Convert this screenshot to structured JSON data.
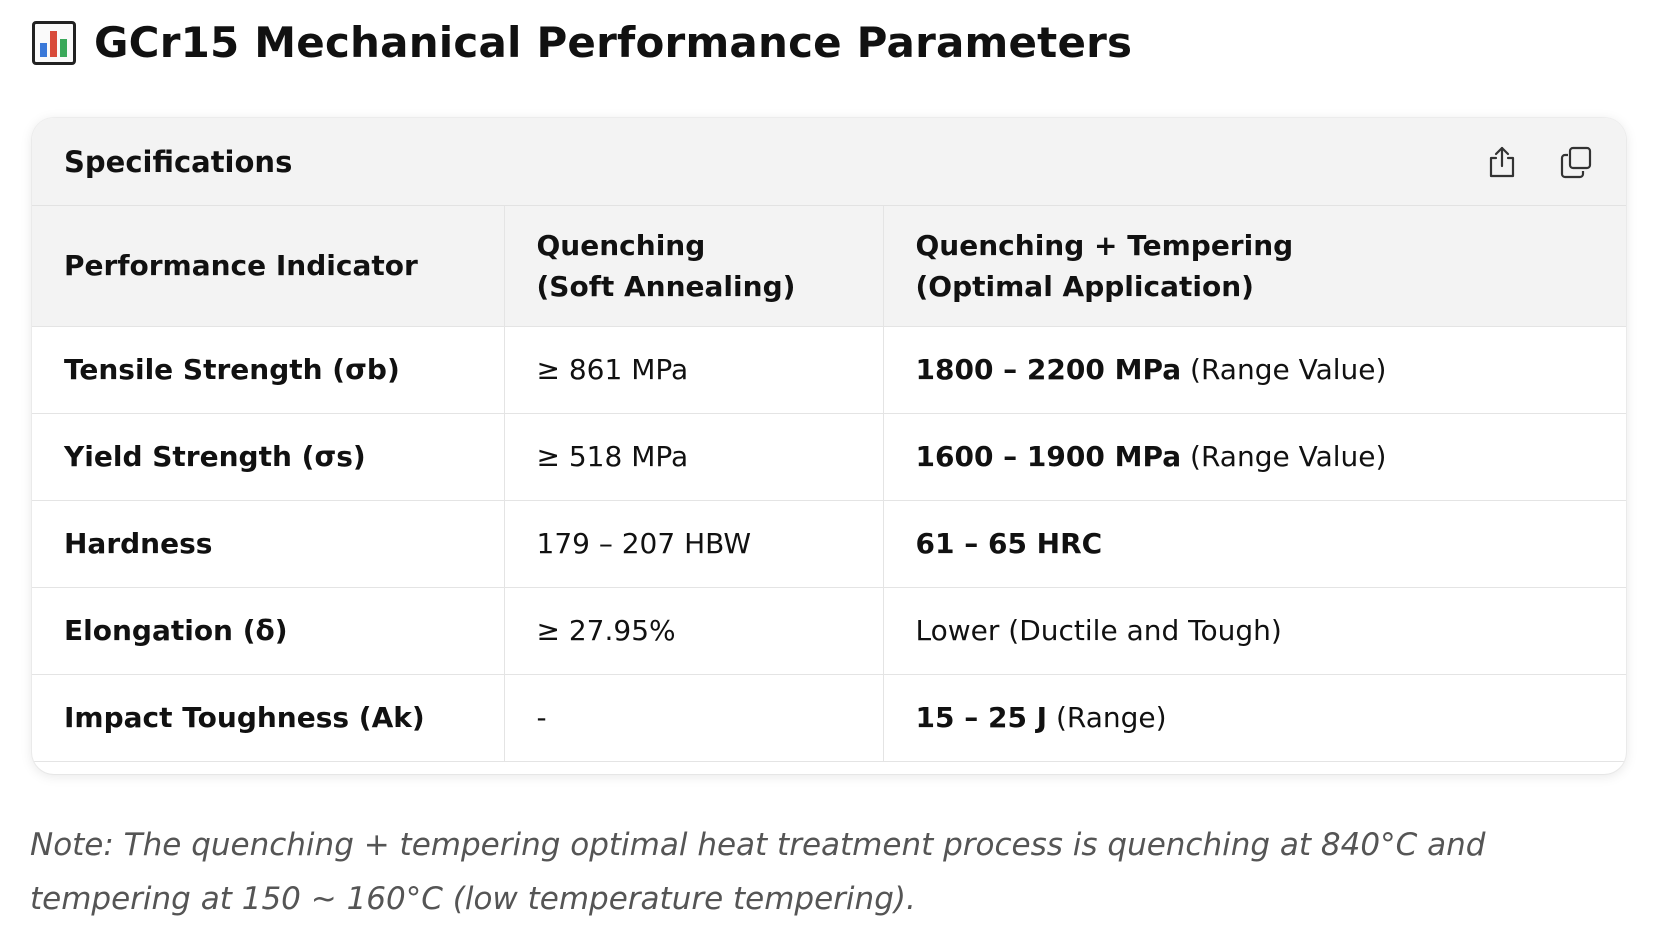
{
  "page": {
    "title": "GCr15 Mechanical Performance Parameters",
    "title_icon": "bar-chart-emoji"
  },
  "card": {
    "title": "Specifications",
    "icons": [
      "share-icon",
      "copy-icon"
    ]
  },
  "table": {
    "headers": [
      {
        "line1": "Performance Indicator",
        "line2": ""
      },
      {
        "line1": "Quenching",
        "line2": "(Soft Annealing)"
      },
      {
        "line1": "Quenching + Tempering",
        "line2": "(Optimal Application)"
      }
    ],
    "rows": [
      {
        "indicator": "Tensile Strength (σb)",
        "annealed": "≥ 861 MPa",
        "tempered_strong": "1800 – 2200 MPa",
        "tempered_note": " (Range Value)"
      },
      {
        "indicator": "Yield Strength (σs)",
        "annealed": "≥ 518 MPa",
        "tempered_strong": "1600 – 1900 MPa",
        "tempered_note": " (Range Value)"
      },
      {
        "indicator": "Hardness",
        "annealed": "179 – 207 HBW",
        "tempered_strong": "61 – 65 HRC",
        "tempered_note": ""
      },
      {
        "indicator": "Elongation (δ)",
        "annealed": "≥ 27.95%",
        "tempered_strong": "",
        "tempered_note": "Lower (Ductile and Tough)"
      },
      {
        "indicator": "Impact Toughness (Ak)",
        "annealed": "-",
        "tempered_strong": "15 – 25 J",
        "tempered_note": " (Range)"
      }
    ]
  },
  "note": "Note: The quenching + tempering optimal heat treatment process is quenching at 840°C and tempering at 150 ~ 160°C (low temperature tempering)."
}
